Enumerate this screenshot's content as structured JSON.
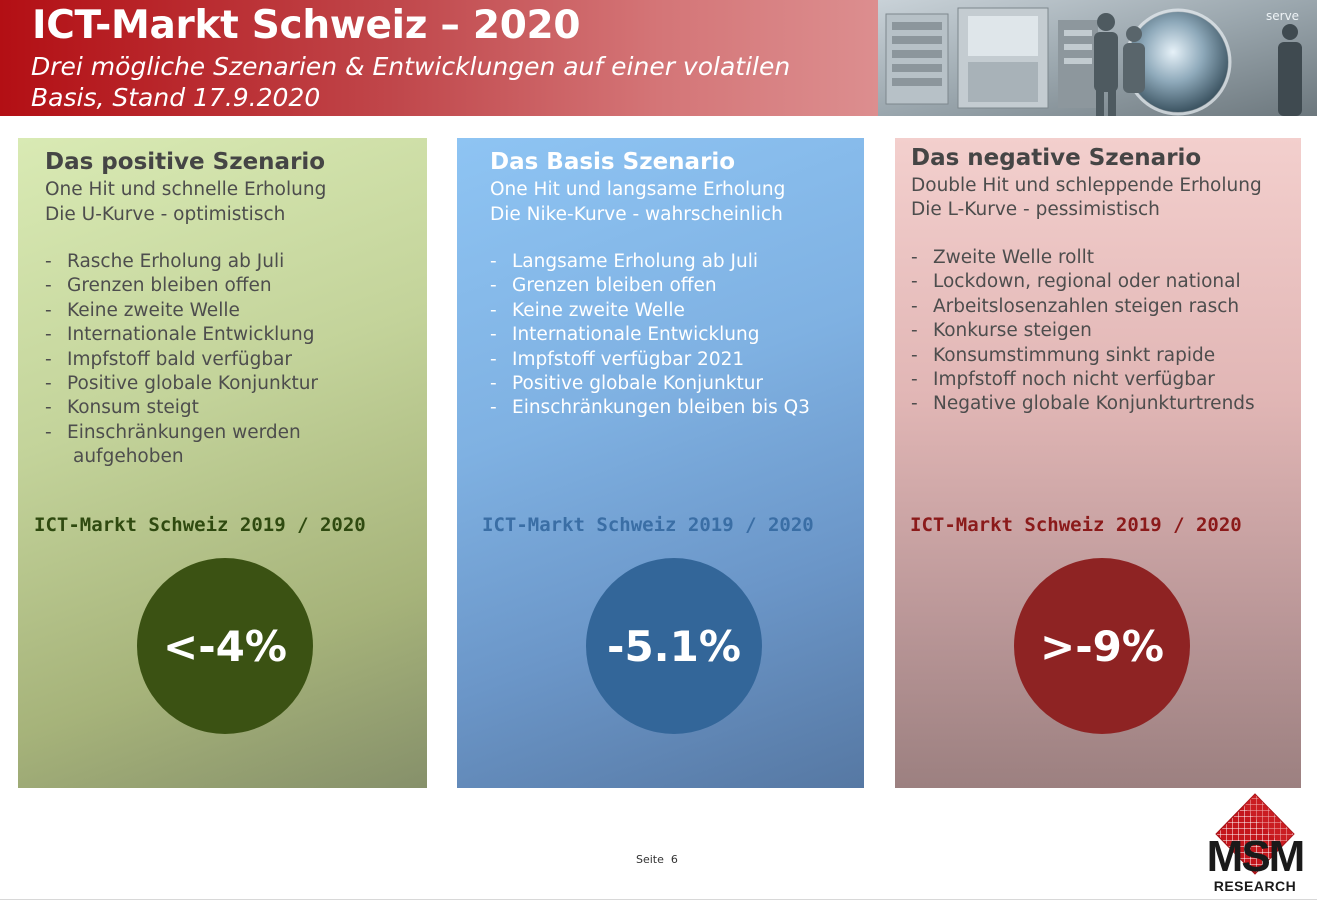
{
  "header": {
    "title": "ICT-Markt Schweiz – 2020",
    "subtitle": "Drei mögliche Szenarien & Entwicklungen auf einer volatilen Basis, Stand 17.9.2020",
    "image_text": "serve"
  },
  "panels": [
    {
      "heading": "Das positive Szenario",
      "sub1": "One Hit und schnelle Erholung",
      "sub2": "Die U-Kurve - optimistisch",
      "bullets": [
        "Rasche Erholung ab Juli",
        "Grenzen bleiben offen",
        "Keine zweite Welle",
        "Internationale Entwicklung",
        "Impfstoff bald verfügbar",
        "Positive globale Konjunktur",
        "Konsum steigt",
        "Einschränkungen werden"
      ],
      "bullet_continuation": "aufgehoben",
      "market_label": "ICT-Markt Schweiz 2019 / 2020",
      "value": "<-4%",
      "label_color": "#2f4a10",
      "circle_color": "#3b5213"
    },
    {
      "heading": "Das Basis Szenario",
      "sub1": "One Hit und langsame Erholung",
      "sub2": "Die Nike-Kurve - wahrscheinlich",
      "bullets": [
        "Langsame Erholung ab Juli",
        "Grenzen bleiben offen",
        "Keine zweite Welle",
        "Internationale Entwicklung",
        "Impfstoff verfügbar 2021",
        "Positive globale Konjunktur",
        "Einschränkungen bleiben bis Q3"
      ],
      "market_label": "ICT-Markt Schweiz 2019 / 2020",
      "value": "-5.1%",
      "label_color": "#3a6ea5",
      "circle_color": "#336699"
    },
    {
      "heading": "Das negative Szenario",
      "sub1": "Double Hit und schleppende Erholung",
      "sub2": "Die L-Kurve - pessimistisch",
      "bullets": [
        "Zweite Welle rollt",
        "Lockdown, regional oder national",
        "Arbeitslosenzahlen steigen rasch",
        "Konkurse steigen",
        "Konsumstimmung sinkt rapide",
        "Impfstoff noch nicht verfügbar",
        "Negative globale Konjunkturtrends"
      ],
      "market_label": "ICT-Markt Schweiz 2019 / 2020",
      "value": ">-9%",
      "label_color": "#8b1a1a",
      "circle_color": "#8e2323"
    }
  ],
  "footer": {
    "page_label": "Seite  6",
    "logo_text": "MSM",
    "logo_sub": "RESEARCH"
  }
}
